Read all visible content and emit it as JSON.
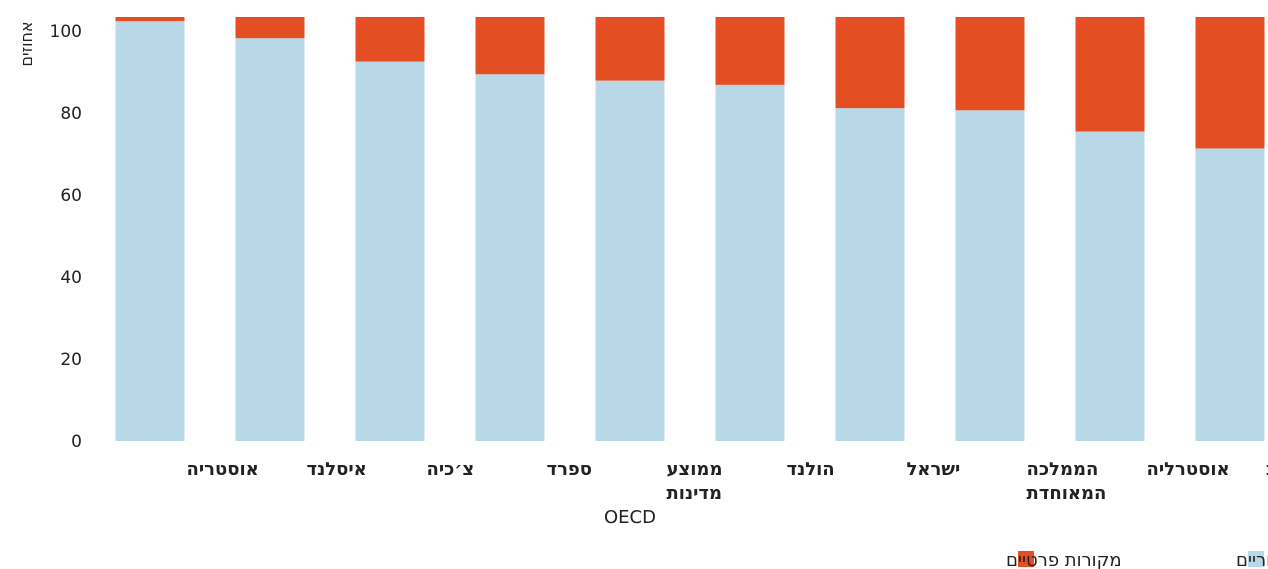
{
  "chart_data": {
    "type": "bar",
    "stacked": true,
    "ylabel": "אחוזים",
    "ylim": [
      0,
      100
    ],
    "yticks": [
      0,
      20,
      40,
      60,
      80,
      100
    ],
    "grid": false,
    "legend_position": "bottom-right",
    "categories": [
      {
        "lines": [
          "ארצות הברית"
        ]
      },
      {
        "lines": [
          "אוסטרליה"
        ]
      },
      {
        "lines": [
          "הממלכה",
          "המאוחדת"
        ]
      },
      {
        "lines": [
          "ישראל"
        ]
      },
      {
        "lines": [
          "הולנד"
        ]
      },
      {
        "lines": [
          "ממוצע",
          "מדינות",
          "OECD"
        ]
      },
      {
        "lines": [
          "ספרד"
        ]
      },
      {
        "lines": [
          "צ׳כיה"
        ]
      },
      {
        "lines": [
          "איסלנד"
        ]
      },
      {
        "lines": [
          "אוסטריה"
        ]
      }
    ],
    "series": [
      {
        "name": "מקורות ציבוריים",
        "color": "#b8d8e8",
        "values": [
          69,
          73,
          78,
          78.5,
          84,
          85,
          86.5,
          89.5,
          95,
          99
        ]
      },
      {
        "name": "מקורות פרטיים",
        "color": "#e34f22",
        "values": [
          31,
          27,
          22,
          21.5,
          16,
          15,
          13.5,
          10.5,
          5,
          1
        ]
      }
    ]
  }
}
